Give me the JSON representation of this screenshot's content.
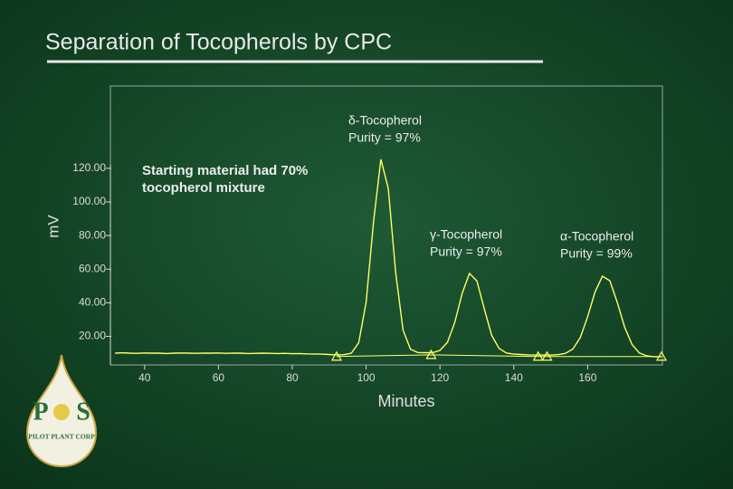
{
  "chart_data": {
    "type": "line",
    "title": "Separation of Tocopherols  by CPC",
    "x_label": "Minutes",
    "y_label": "mV",
    "color": "#ffff66",
    "x": [
      32,
      34,
      36,
      38,
      40,
      42,
      44,
      46,
      48,
      50,
      52,
      54,
      56,
      58,
      60,
      62,
      64,
      66,
      68,
      70,
      72,
      74,
      76,
      78,
      80,
      82,
      84,
      86,
      88,
      90,
      92,
      94,
      96,
      98,
      100,
      102,
      104,
      106,
      108,
      110,
      112,
      114,
      116,
      118,
      120,
      122,
      124,
      126,
      128,
      130,
      132,
      134,
      136,
      138,
      140,
      142,
      144,
      146,
      148,
      150,
      152,
      154,
      156,
      158,
      160,
      162,
      164,
      166,
      168,
      170,
      172,
      174,
      176,
      178,
      180
    ],
    "values": [
      10,
      10.2,
      10,
      9.9,
      10.1,
      10,
      10,
      9.8,
      10,
      10.1,
      10,
      9.9,
      10,
      10,
      10.1,
      9.9,
      10,
      10,
      9.8,
      9.9,
      10,
      9.9,
      9.8,
      9.9,
      9.7,
      9.8,
      9.6,
      9.5,
      9.4,
      9.2,
      9,
      9.1,
      10,
      16.2,
      40.3,
      88.3,
      125.4,
      108,
      58.1,
      23.7,
      12.4,
      10.4,
      10.3,
      10.3,
      11.7,
      16.4,
      28.2,
      45.6,
      57.5,
      53,
      36.3,
      20.7,
      12.8,
      10.1,
      9.4,
      9.2,
      9,
      8.9,
      8.9,
      8.9,
      9.1,
      9.9,
      12.5,
      19.3,
      31.7,
      46.5,
      55.8,
      53.1,
      40.4,
      25.6,
      15.2,
      10.1,
      8.4,
      7.9,
      7.8
    ],
    "markers": {
      "x": [
        92,
        117.6,
        146.6,
        149,
        180
      ],
      "y": [
        8,
        9,
        8,
        8,
        8
      ]
    },
    "xlim": [
      30,
      180
    ],
    "ylim": [
      3,
      169
    ],
    "xticks": [
      40,
      60,
      80,
      100,
      120,
      140,
      160
    ],
    "yticks": [
      {
        "value": 20,
        "label": "20.00"
      },
      {
        "value": 40,
        "label": "40.00"
      },
      {
        "value": 60,
        "label": "60.00"
      },
      {
        "value": 80,
        "label": "80.00"
      },
      {
        "value": 100,
        "label": "100.00"
      },
      {
        "value": 120,
        "label": "120.00"
      }
    ],
    "annotations": [
      {
        "lines": [
          "δ-Tocopherol",
          "Purity = 97%"
        ]
      },
      {
        "lines": [
          "Starting material had 70%",
          "tocopherol mixture"
        ]
      },
      {
        "lines": [
          "γ-Tocopherol",
          "Purity = 97%"
        ]
      },
      {
        "lines": [
          "α-Tocopherol",
          "Purity = 99%"
        ]
      }
    ],
    "logo": {
      "left": "P",
      "right": "S",
      "name": "PILOT PLANT CORP"
    }
  }
}
